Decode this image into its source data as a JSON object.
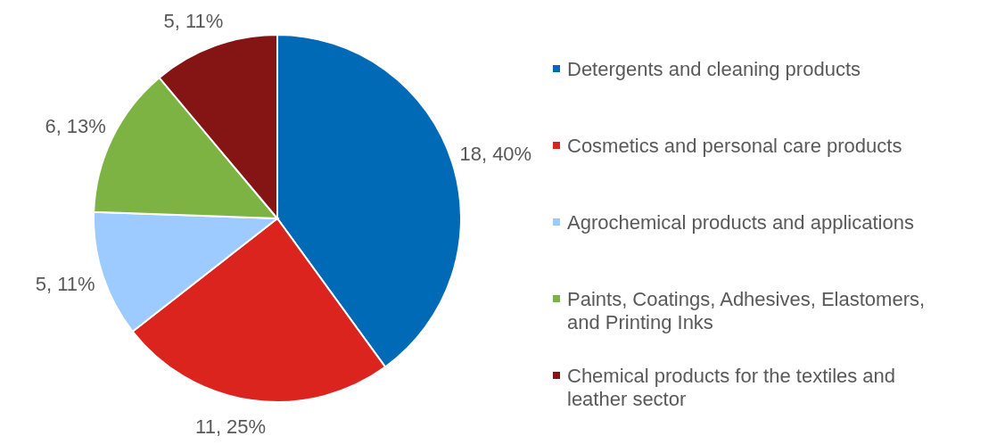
{
  "chart_data": {
    "type": "pie",
    "categories": [
      "Detergents and cleaning products",
      "Cosmetics and personal care products",
      "Agrochemical products and applications",
      "Paints, Coatings, Adhesives, Elastomers, and Printing Inks",
      "Chemical products for the textiles and leather sector"
    ],
    "values": [
      18,
      11,
      5,
      6,
      5
    ],
    "colors": [
      "#006ab6",
      "#dc241f",
      "#9dcbff",
      "#7db343",
      "#851414"
    ],
    "value_labels": [
      "18, 40%",
      "11, 25%",
      "5, 11%",
      "6, 13%",
      "5, 11%"
    ],
    "legend": "right"
  }
}
